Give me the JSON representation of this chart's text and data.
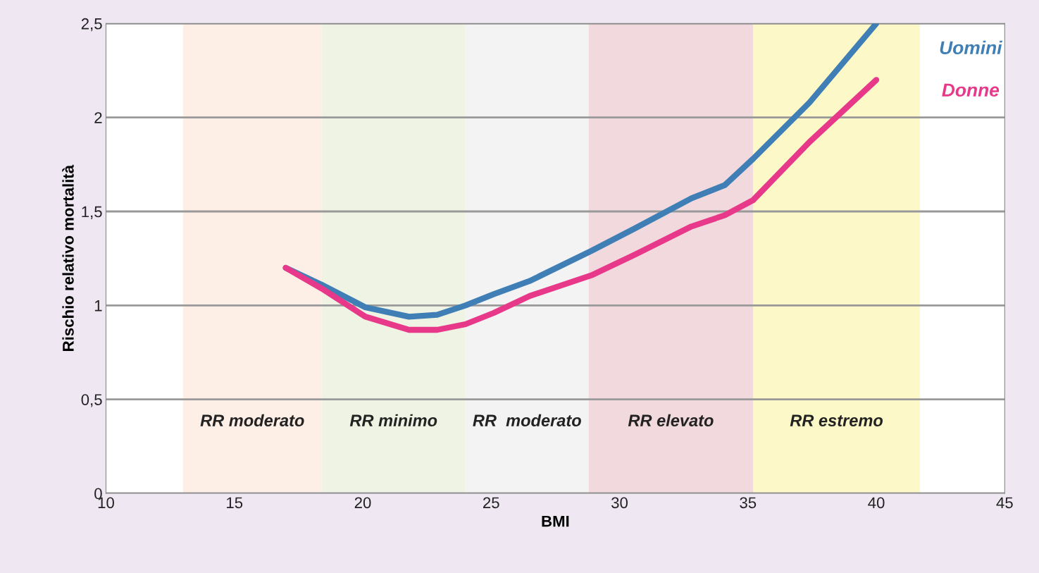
{
  "chart_data": {
    "type": "line",
    "xlabel": "BMI",
    "ylabel": "Rischio relativo mortalità",
    "xlim": [
      10,
      45
    ],
    "xticks": [
      10,
      15,
      20,
      25,
      30,
      35,
      40,
      45
    ],
    "ylim": [
      0,
      2.5
    ],
    "yticks": [
      {
        "value": 0,
        "label": "0"
      },
      {
        "value": 0.5,
        "label": "0,5"
      },
      {
        "value": 1,
        "label": "1"
      },
      {
        "value": 1.5,
        "label": "1,5"
      },
      {
        "value": 2,
        "label": "2"
      },
      {
        "value": 2.5,
        "label": "2,5"
      }
    ],
    "grid": "y",
    "marker": "none",
    "line_style": "solid",
    "x": [
      17.0,
      18.4,
      20.1,
      21.8,
      22.9,
      24.0,
      25.1,
      26.5,
      28.9,
      30.6,
      32.8,
      34.1,
      35.2,
      37.4,
      40.0
    ],
    "series": [
      {
        "name": "Uomini",
        "color": "#3f7fb5",
        "values": [
          1.2,
          1.11,
          0.99,
          0.94,
          0.95,
          1.0,
          1.06,
          1.13,
          1.29,
          1.41,
          1.57,
          1.64,
          1.78,
          2.08,
          2.5
        ]
      },
      {
        "name": "Donne",
        "color": "#e8388a",
        "values": [
          1.2,
          1.09,
          0.94,
          0.87,
          0.87,
          0.9,
          0.96,
          1.05,
          1.16,
          1.27,
          1.42,
          1.48,
          1.56,
          1.87,
          2.2
        ]
      }
    ],
    "bands": [
      {
        "axis": "x",
        "from": 13,
        "to": 18.4,
        "label": "RR moderato",
        "color": "#fdeee6"
      },
      {
        "axis": "x",
        "from": 18.4,
        "to": 24,
        "label": "RR minimo",
        "color": "#eef3e4"
      },
      {
        "axis": "x",
        "from": 24,
        "to": 28.8,
        "label": "RR  moderato",
        "color": "#f3f3f3"
      },
      {
        "axis": "x",
        "from": 28.8,
        "to": 35.2,
        "label": "RR elevato",
        "color": "#f1d9dd"
      },
      {
        "axis": "x",
        "from": 35.2,
        "to": 41.7,
        "label": "RR estremo",
        "color": "#fdf8c8"
      }
    ]
  }
}
